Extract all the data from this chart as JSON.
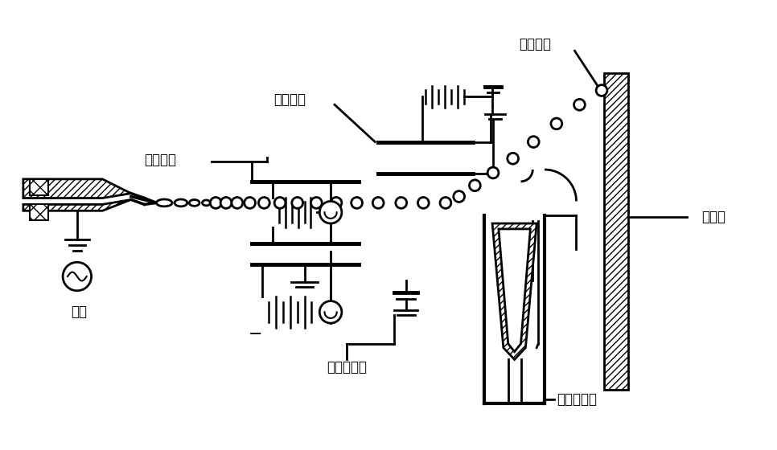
{
  "labels": {
    "nozzle": "喷嘴",
    "charge_electrode": "充电电极",
    "deflect_electrode": "偏转电极",
    "charged_drop": "带电墨滴",
    "uncharged_drop": "不带电墨滴",
    "paper": "打印纸",
    "ink_collector": "墨水回收器"
  },
  "bg_color": "#ffffff",
  "lw": 2.0,
  "PW": 966,
  "PH": 560
}
